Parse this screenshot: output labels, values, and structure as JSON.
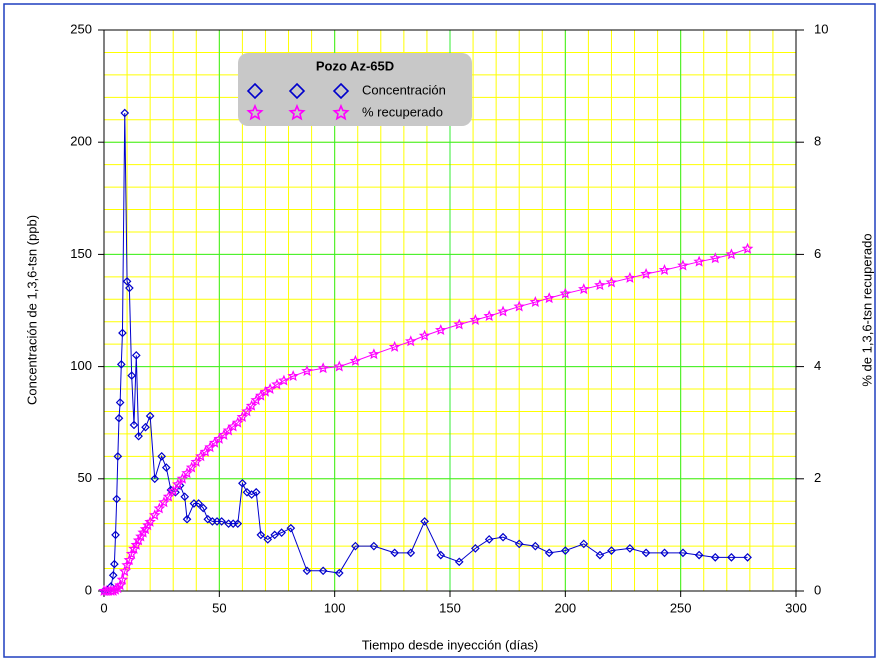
{
  "chart_data": {
    "type": "line",
    "xlabel": "Tiempo desde inyección (días)",
    "ylabel": "Concentración de 1,3,6-tsn (ppb)",
    "y2label": "% de 1,3,6-tsn recuperado",
    "legend_title": "Pozo Az-65D",
    "legend": "upper-center",
    "grid": true,
    "xlim": [
      0,
      300
    ],
    "xticks": [
      0,
      50,
      100,
      150,
      200,
      250,
      300
    ],
    "ylim": [
      0,
      250
    ],
    "yticks": [
      0,
      50,
      100,
      150,
      200,
      250
    ],
    "y2lim": [
      0,
      10
    ],
    "y2ticks": [
      0,
      2,
      4,
      6,
      8,
      10
    ],
    "series": [
      {
        "name": "Concentración",
        "color": "#0000cc",
        "marker": "diamond",
        "x": [
          0,
          1,
          2,
          3,
          4,
          4.5,
          5,
          5.5,
          6,
          6.5,
          7,
          7.5,
          8,
          9,
          10,
          11,
          12,
          13,
          14,
          15,
          18,
          20,
          22,
          25,
          27,
          29,
          31,
          33,
          35,
          36,
          39,
          41,
          43,
          45,
          47,
          49,
          51,
          54,
          56,
          58,
          60,
          62,
          64,
          66,
          68,
          71,
          74,
          77,
          81,
          88,
          95,
          102,
          109,
          117,
          126,
          133,
          139,
          146,
          154,
          161,
          167,
          173,
          180,
          187,
          193,
          200,
          208,
          215,
          220,
          228,
          235,
          243,
          251,
          258,
          265,
          272,
          279
        ],
        "values": [
          0,
          0,
          0,
          2,
          7,
          12,
          25,
          41,
          60,
          77,
          84,
          101,
          115,
          213,
          138,
          135,
          96,
          74,
          105,
          69,
          73,
          78,
          50,
          60,
          55,
          45,
          44,
          47,
          42,
          32,
          39,
          39,
          37,
          32,
          31,
          31,
          31,
          30,
          30,
          30,
          48,
          44,
          43,
          44,
          25,
          23,
          25,
          26,
          28,
          9,
          9,
          8,
          20,
          20,
          17,
          17,
          31,
          16,
          13,
          19,
          23,
          24,
          21,
          20,
          17,
          18,
          21,
          16,
          18,
          19,
          17,
          17,
          17,
          16,
          15,
          15,
          15
        ]
      },
      {
        "name": "% recuperado",
        "color": "#ff00ff",
        "marker": "star",
        "axis": "y2",
        "x": [
          0,
          1,
          2,
          3,
          4,
          5,
          6,
          7,
          8,
          9,
          10,
          11,
          12,
          13,
          14,
          15,
          16,
          17,
          18,
          19,
          20,
          22,
          24,
          26,
          28,
          30,
          32,
          34,
          36,
          38,
          40,
          42,
          44,
          46,
          48,
          50,
          52,
          54,
          56,
          58,
          60,
          62,
          64,
          66,
          68,
          70,
          72,
          75,
          78,
          82,
          88,
          95,
          102,
          109,
          117,
          126,
          133,
          139,
          146,
          154,
          161,
          167,
          173,
          180,
          187,
          193,
          200,
          208,
          215,
          220,
          228,
          235,
          243,
          251,
          258,
          265,
          272,
          279
        ],
        "values": [
          0,
          0,
          0,
          0,
          0,
          0.02,
          0.05,
          0.1,
          0.2,
          0.35,
          0.46,
          0.55,
          0.66,
          0.75,
          0.82,
          0.9,
          0.97,
          1.04,
          1.1,
          1.17,
          1.23,
          1.35,
          1.47,
          1.58,
          1.68,
          1.78,
          1.9,
          2.0,
          2.1,
          2.2,
          2.3,
          2.4,
          2.48,
          2.56,
          2.64,
          2.71,
          2.78,
          2.86,
          2.93,
          3.0,
          3.1,
          3.2,
          3.3,
          3.4,
          3.48,
          3.55,
          3.6,
          3.68,
          3.75,
          3.83,
          3.92,
          3.97,
          4.0,
          4.1,
          4.22,
          4.35,
          4.45,
          4.55,
          4.65,
          4.75,
          4.83,
          4.9,
          4.98,
          5.07,
          5.15,
          5.22,
          5.3,
          5.38,
          5.45,
          5.5,
          5.58,
          5.65,
          5.72,
          5.8,
          5.87,
          5.93,
          6.0,
          6.1
        ]
      }
    ]
  }
}
